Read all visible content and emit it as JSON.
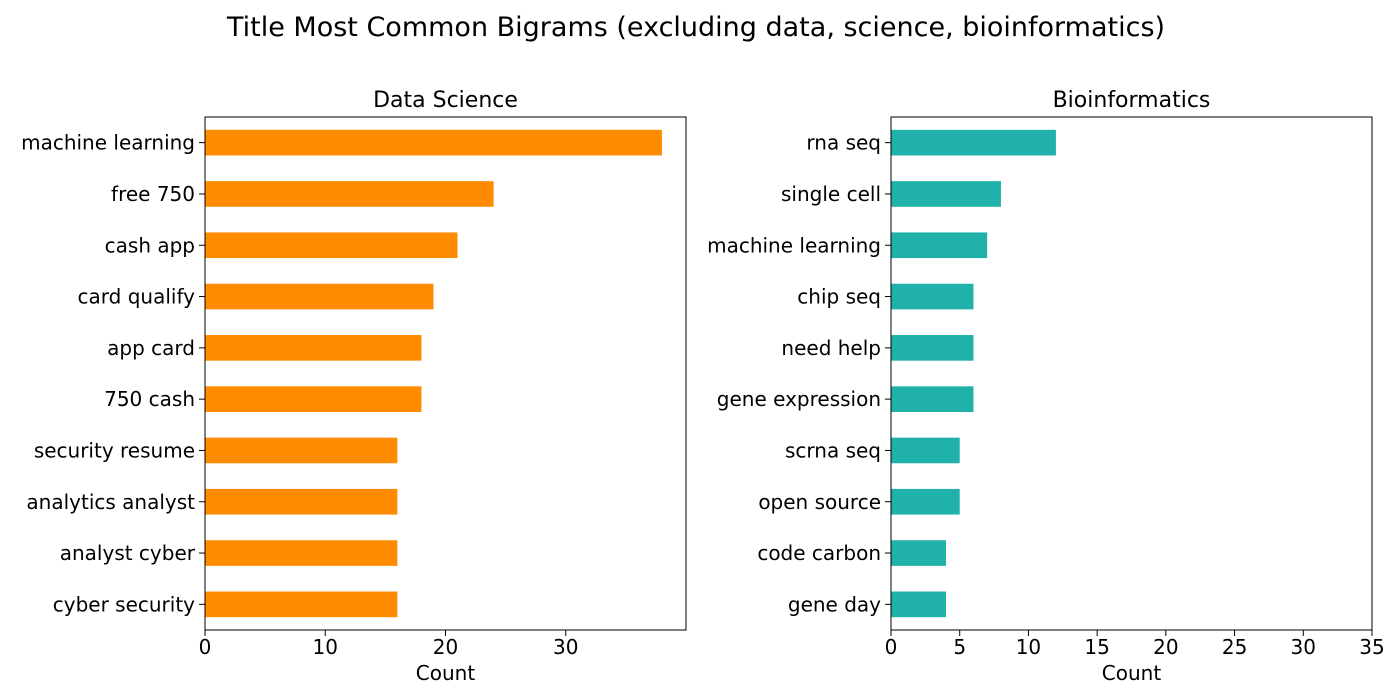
{
  "figure": {
    "title": "Title Most Common Bigrams (excluding data, science, bioinformatics)"
  },
  "chart_data": [
    {
      "type": "bar",
      "orientation": "horizontal",
      "title": "Data Science",
      "xlabel": "Count",
      "ylabel": "",
      "bar_color": "#ff8c00",
      "xlim": [
        0,
        40
      ],
      "xticks": [
        0,
        10,
        20,
        30
      ],
      "categories": [
        "machine learning",
        "free 750",
        "cash app",
        "card qualify",
        "app card",
        "750 cash",
        "security resume",
        "analytics analyst",
        "analyst cyber",
        "cyber security"
      ],
      "values": [
        38,
        24,
        21,
        19,
        18,
        18,
        16,
        16,
        16,
        16
      ],
      "grid": false,
      "legend": false
    },
    {
      "type": "bar",
      "orientation": "horizontal",
      "title": "Bioinformatics",
      "xlabel": "Count",
      "ylabel": "",
      "bar_color": "#20b2aa",
      "xlim": [
        0,
        35
      ],
      "xticks": [
        0,
        5,
        10,
        15,
        20,
        25,
        30,
        35
      ],
      "categories": [
        "rna seq",
        "single cell",
        "machine learning",
        "chip seq",
        "need help",
        "gene expression",
        "scrna seq",
        "open source",
        "code carbon",
        "gene day"
      ],
      "values": [
        12,
        8,
        7,
        6,
        6,
        6,
        5,
        5,
        4,
        4
      ],
      "grid": false,
      "legend": false
    }
  ]
}
